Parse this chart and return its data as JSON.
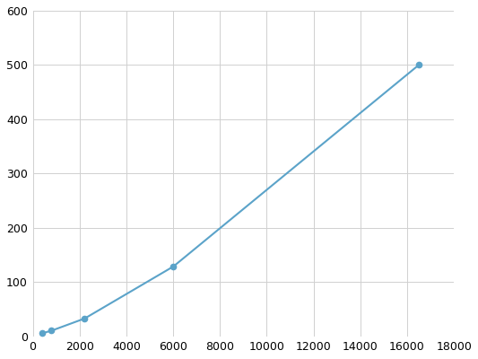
{
  "x": [
    400,
    800,
    2200,
    6000,
    16500
  ],
  "y": [
    5,
    10,
    32,
    128,
    500
  ],
  "line_color": "#5ba3c9",
  "marker_color": "#5ba3c9",
  "marker_style": "o",
  "marker_size": 4.5,
  "line_width": 1.5,
  "xlim": [
    0,
    18000
  ],
  "ylim": [
    0,
    600
  ],
  "xticks": [
    0,
    2000,
    4000,
    6000,
    8000,
    10000,
    12000,
    14000,
    16000,
    18000
  ],
  "yticks": [
    0,
    100,
    200,
    300,
    400,
    500,
    600
  ],
  "grid_color": "#d0d0d0",
  "grid_linestyle": "-",
  "grid_linewidth": 0.7,
  "background_color": "#ffffff",
  "tick_fontsize": 9,
  "figsize": [
    5.33,
    4.0
  ],
  "dpi": 100
}
